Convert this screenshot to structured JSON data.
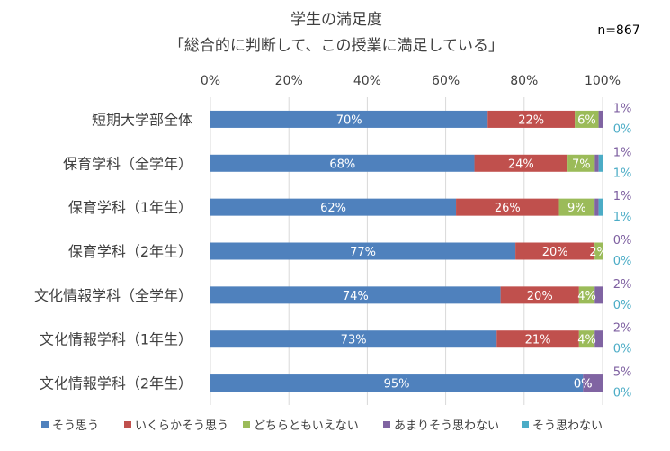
{
  "chart_data": {
    "type": "bar",
    "orientation": "horizontal",
    "stacked": true,
    "title": "学生の満足度",
    "subtitle": "「総合的に判断して、この授業に満足している」",
    "annotation": "n=867",
    "xlim": [
      0,
      100
    ],
    "x_ticks": [
      "0%",
      "20%",
      "40%",
      "60%",
      "80%",
      "100%"
    ],
    "grid": true,
    "legend_position": "bottom",
    "categories": [
      "短期大学部全体",
      "保育学科（全学年）",
      "保育学科（1年生）",
      "保育学科（2年生）",
      "文化情報学科（全学年）",
      "文化情報学科（1年生）",
      "文化情報学科（2年生）"
    ],
    "series": [
      {
        "name": "そう思う",
        "color": "#4f81bd",
        "values": [
          70,
          68,
          62,
          77,
          74,
          73,
          95
        ],
        "labels": [
          "70%",
          "68%",
          "62%",
          "77%",
          "74%",
          "73%",
          "95%"
        ]
      },
      {
        "name": "いくらかそう思う",
        "color": "#c0504d",
        "values": [
          22,
          24,
          26,
          20,
          20,
          21,
          0
        ],
        "labels": [
          "22%",
          "24%",
          "26%",
          "20%",
          "20%",
          "21%",
          "0%"
        ]
      },
      {
        "name": "どちらともいえない",
        "color": "#9bbb59",
        "values": [
          6,
          7,
          9,
          2,
          4,
          4,
          0
        ],
        "labels": [
          "6%",
          "7%",
          "9%",
          "2%",
          "4%",
          "4%",
          "0%"
        ]
      },
      {
        "name": "あまりそう思わない",
        "color": "#8064a2",
        "values": [
          1,
          1,
          1,
          0,
          2,
          2,
          5
        ],
        "labels": [
          "1%",
          "1%",
          "1%",
          "0%",
          "2%",
          "2%",
          "5%"
        ]
      },
      {
        "name": "そう思わない",
        "color": "#4bacc6",
        "values": [
          0,
          1,
          1,
          0,
          0,
          0,
          0
        ],
        "labels": [
          "0%",
          "1%",
          "1%",
          "0%",
          "0%",
          "0%",
          "0%"
        ]
      }
    ]
  }
}
